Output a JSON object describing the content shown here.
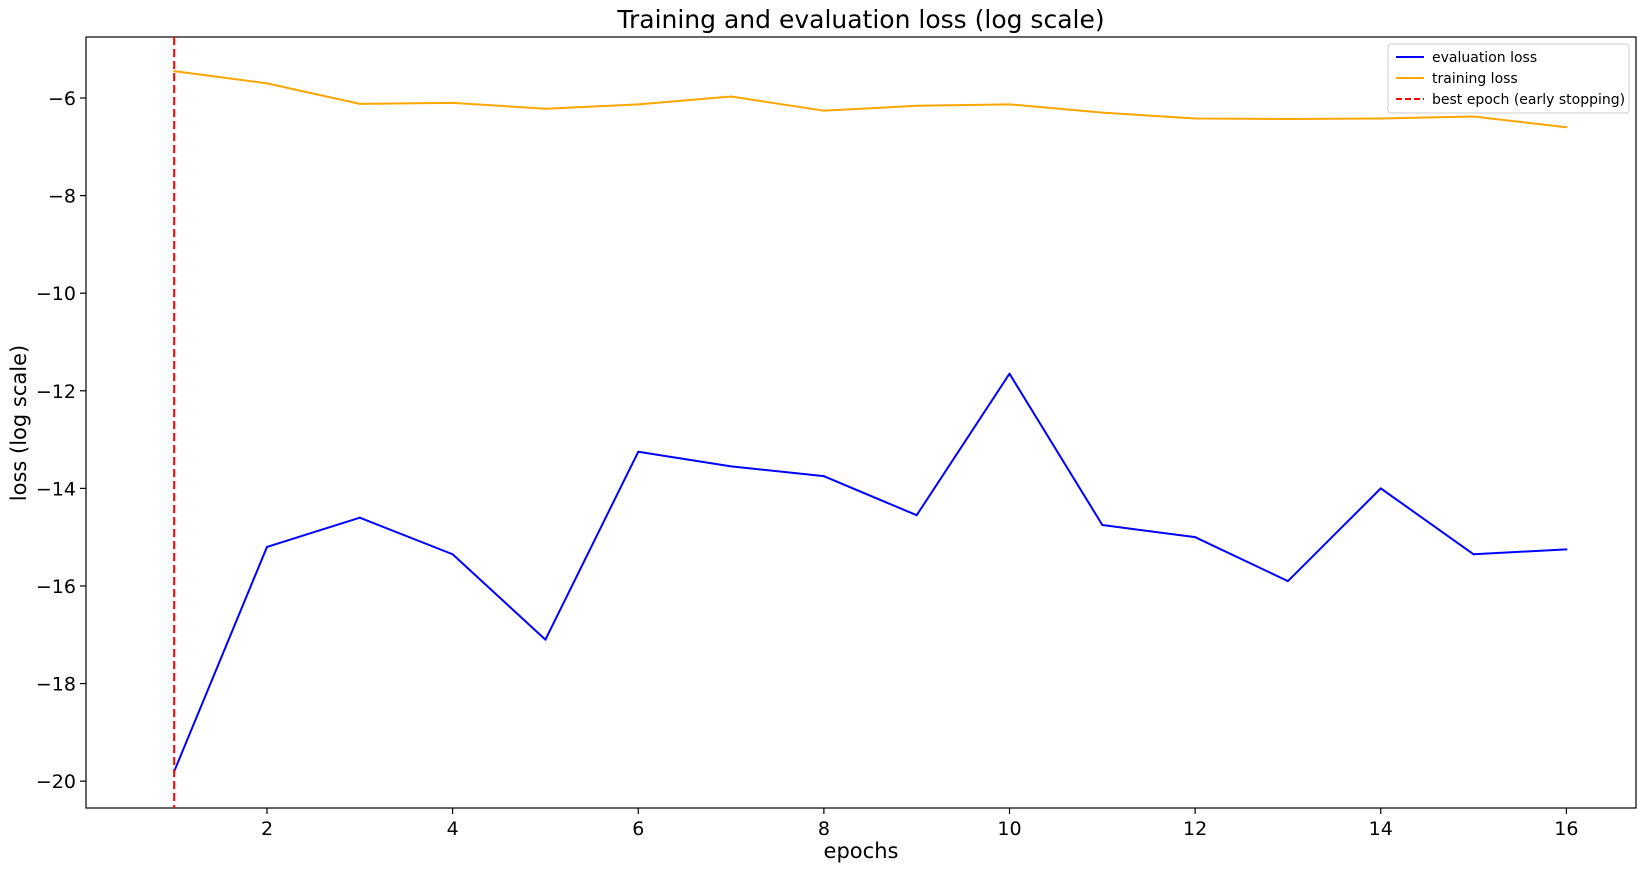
{
  "chart_data": {
    "type": "line",
    "title": "Training and evaluation loss (log scale)",
    "xlabel": "epochs",
    "ylabel": "loss (log scale)",
    "xlim": [
      0.05,
      16.75
    ],
    "ylim": [
      -20.55,
      -4.75
    ],
    "xticks": [
      2,
      4,
      6,
      8,
      10,
      12,
      14,
      16
    ],
    "yticks": [
      -20,
      -18,
      -16,
      -14,
      -12,
      -10,
      -8,
      -6
    ],
    "x": [
      1,
      2,
      3,
      4,
      5,
      6,
      7,
      8,
      9,
      10,
      11,
      12,
      13,
      14,
      15,
      16
    ],
    "series": [
      {
        "name": "evaluation loss",
        "color": "#0000ff",
        "values": [
          -19.8,
          -15.2,
          -14.6,
          -15.35,
          -17.1,
          -13.25,
          -13.55,
          -13.75,
          -14.55,
          -11.65,
          -14.75,
          -15.0,
          -15.9,
          -14.0,
          -15.35,
          -15.25
        ]
      },
      {
        "name": "training loss",
        "color": "#ffa500",
        "values": [
          -5.45,
          -5.7,
          -6.12,
          -6.1,
          -6.22,
          -6.13,
          -5.97,
          -6.26,
          -6.16,
          -6.13,
          -6.3,
          -6.42,
          -6.43,
          -6.42,
          -6.38,
          -6.6
        ]
      }
    ],
    "vline": {
      "name": "best epoch (early stopping)",
      "x": 1,
      "color": "#ff0000",
      "style": "dashed"
    },
    "legend_position": "top-right",
    "grid": false
  }
}
